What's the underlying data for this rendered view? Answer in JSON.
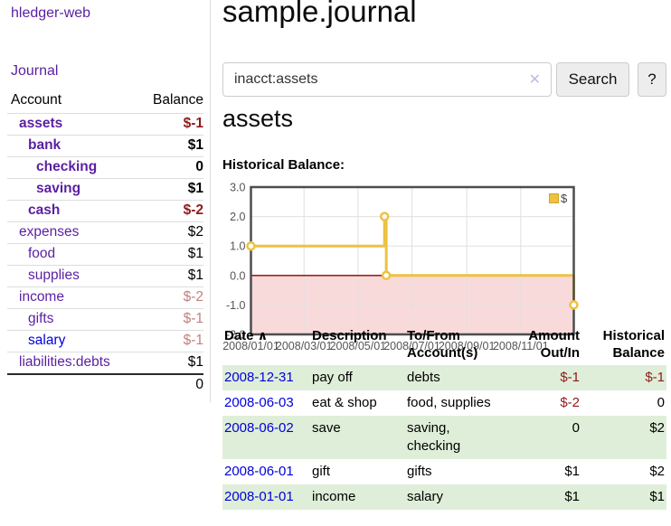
{
  "app": {
    "title": "hledger-web",
    "nav_journal": "Journal"
  },
  "sidebar": {
    "header": {
      "account": "Account",
      "balance": "Balance"
    },
    "accounts": [
      {
        "name": "assets",
        "balance": "$-1"
      },
      {
        "name": "bank",
        "balance": "$1"
      },
      {
        "name": "checking",
        "balance": "0"
      },
      {
        "name": "saving",
        "balance": "$1"
      },
      {
        "name": "cash",
        "balance": "$-2"
      },
      {
        "name": "expenses",
        "balance": "$2"
      },
      {
        "name": "food",
        "balance": "$1"
      },
      {
        "name": "supplies",
        "balance": "$1"
      },
      {
        "name": "income",
        "balance": "$-2"
      },
      {
        "name": "gifts",
        "balance": "$-1"
      },
      {
        "name": "salary",
        "balance": "$-1"
      },
      {
        "name": "liabilities:debts",
        "balance": "$1"
      }
    ],
    "total": "0"
  },
  "header": {
    "title": "sample.journal"
  },
  "search": {
    "value": "inacct:assets",
    "clear_icon": "✕",
    "button_label": "Search",
    "help_label": "?"
  },
  "account_page": {
    "heading": "assets",
    "chart_label": "Historical Balance:"
  },
  "chart_data": {
    "type": "line",
    "step": true,
    "title": "Historical Balance",
    "legend_position": "top-right",
    "grid": true,
    "ylim": [
      -2,
      3
    ],
    "x_max_day": 365,
    "y_ticks": [
      {
        "label": "3.0",
        "value": 3
      },
      {
        "label": "2.0",
        "value": 2
      },
      {
        "label": "1.0",
        "value": 1
      },
      {
        "label": "0.0",
        "value": 0
      },
      {
        "label": "-1.0",
        "value": -1
      },
      {
        "label": "-2.0",
        "value": -2
      }
    ],
    "x_ticks": [
      {
        "label": "2008/01/01",
        "day": 0
      },
      {
        "label": "2008/03/01",
        "day": 60
      },
      {
        "label": "2008/05/01",
        "day": 121
      },
      {
        "label": "2008/07/01",
        "day": 182
      },
      {
        "label": "2008/09/01",
        "day": 244
      },
      {
        "label": "2008/11/01",
        "day": 305
      }
    ],
    "series": [
      {
        "name": "$",
        "color": "#edc240",
        "points": [
          {
            "date": "2008-01-01",
            "day": 0,
            "value": 1
          },
          {
            "date": "2008-06-01",
            "day": 151,
            "value": 2
          },
          {
            "date": "2008-06-03",
            "day": 153,
            "value": 0
          },
          {
            "date": "2008-12-31",
            "day": 365,
            "value": -1
          }
        ]
      }
    ],
    "style": {
      "negative_fill": "#f9dada",
      "zero_line": "#8b0000",
      "grid": "#e0e0e0",
      "border": "#4d4d4d",
      "tick_color": "#545454"
    }
  },
  "register": {
    "columns": [
      "Date",
      "Description",
      "To/From Account(s)",
      "Amount Out/In",
      "Historical Balance"
    ],
    "sort_icon": "∧",
    "rows": [
      {
        "date": "2008-12-31",
        "description": "pay off",
        "accounts": "debts",
        "amount": "$-1",
        "balance": "$-1"
      },
      {
        "date": "2008-06-03",
        "description": "eat & shop",
        "accounts": "food, supplies",
        "amount": "$-2",
        "balance": "0"
      },
      {
        "date": "2008-06-02",
        "description": "save",
        "accounts": "saving, checking",
        "amount": "0",
        "balance": "$2"
      },
      {
        "date": "2008-06-01",
        "description": "gift",
        "accounts": "gifts",
        "amount": "$1",
        "balance": "$2"
      },
      {
        "date": "2008-01-01",
        "description": "income",
        "accounts": "salary",
        "amount": "$1",
        "balance": "$1"
      }
    ]
  }
}
